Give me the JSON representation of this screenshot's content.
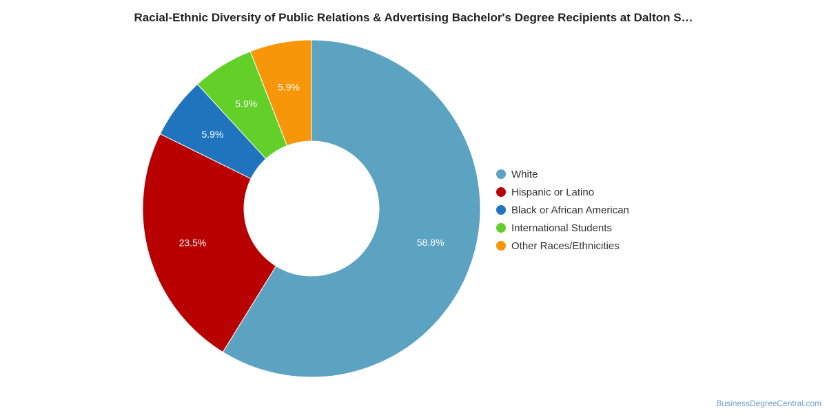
{
  "chart_data": {
    "type": "pie",
    "variant": "donut",
    "title": "Racial-Ethnic Diversity of Public Relations & Advertising Bachelor's Degree Recipients at Dalton S…",
    "categories": [
      "White",
      "Hispanic or Latino",
      "Black or African American",
      "International Students",
      "Other Races/Ethnicities"
    ],
    "values": [
      58.8,
      23.5,
      5.9,
      5.9,
      5.9
    ],
    "labels": [
      "58.8%",
      "23.5%",
      "5.9%",
      "5.9%",
      "5.9%"
    ],
    "colors": [
      "#5ba3c0",
      "#b80000",
      "#1f74bd",
      "#63cf29",
      "#f79608"
    ],
    "legend_position": "right"
  },
  "credit": "BusinessDegreeCentral.com"
}
